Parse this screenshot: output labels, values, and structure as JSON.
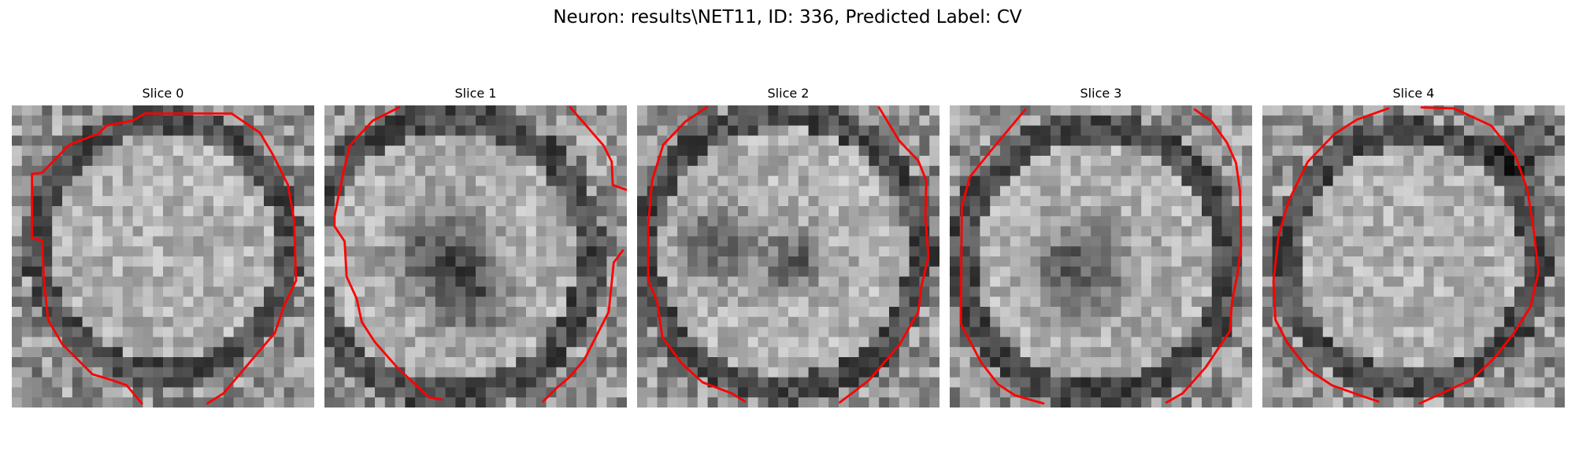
{
  "figure": {
    "title": "Neuron: results\\NET11, ID: 336, Predicted Label: CV"
  },
  "panels": [
    {
      "label": "Slice 0"
    },
    {
      "label": "Slice 1"
    },
    {
      "label": "Slice 2"
    },
    {
      "label": "Slice 3"
    },
    {
      "label": "Slice 4"
    }
  ],
  "style": {
    "contour_color": "#ff0000",
    "colormap": "grayscale"
  }
}
